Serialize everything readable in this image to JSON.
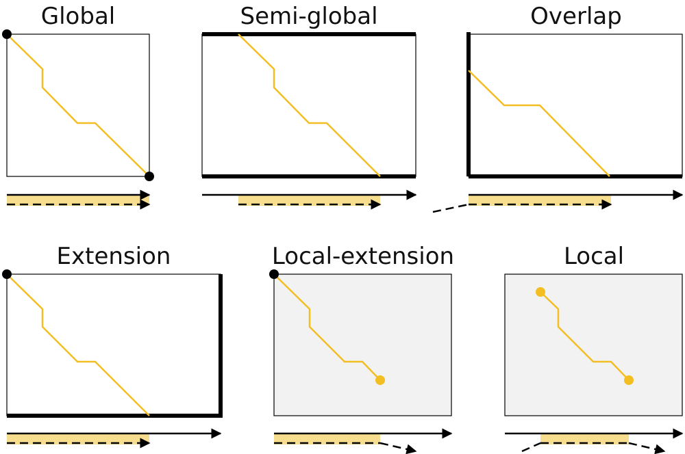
{
  "colors": {
    "path": "#F2BE22",
    "highlight": "#F7DE8E",
    "ink": "#000000",
    "local_fill": "#F2F2F2"
  },
  "panels": [
    {
      "id": "global",
      "title": "Global"
    },
    {
      "id": "semi-global",
      "title": "Semi-global"
    },
    {
      "id": "overlap",
      "title": "Overlap"
    },
    {
      "id": "extension",
      "title": "Extension"
    },
    {
      "id": "local-extension",
      "title": "Local-extension"
    },
    {
      "id": "local",
      "title": "Local"
    }
  ]
}
